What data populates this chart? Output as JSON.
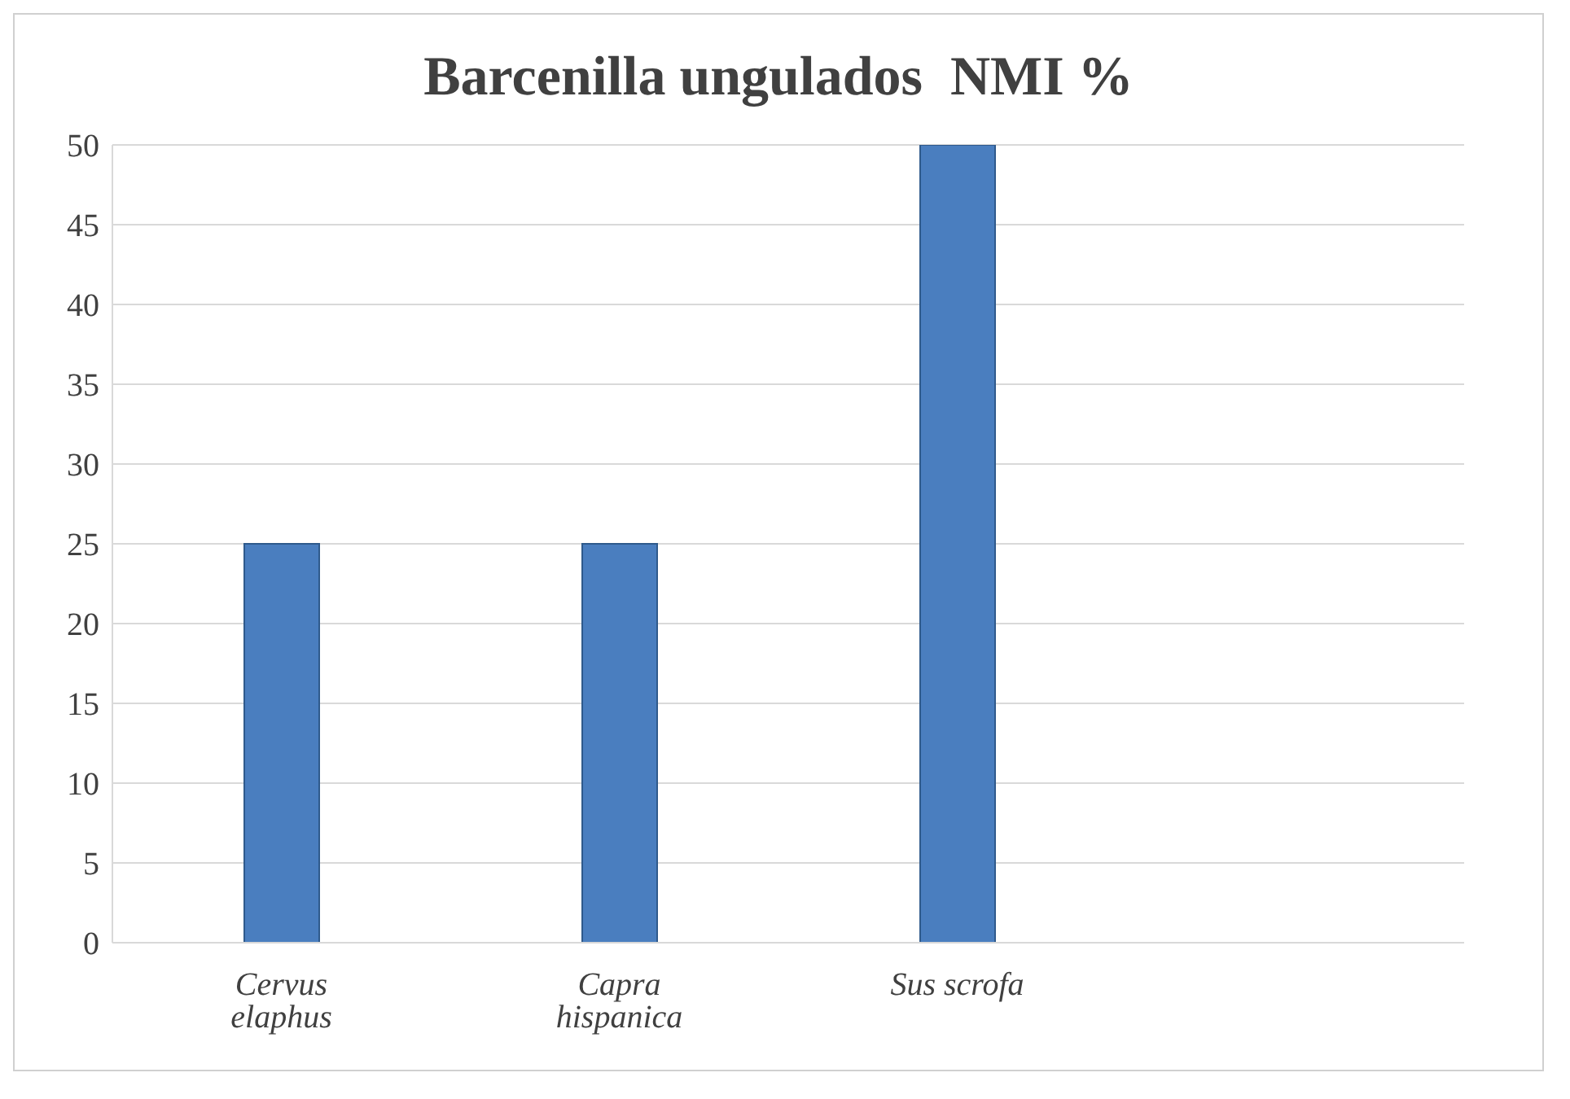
{
  "chart_data": {
    "type": "bar",
    "title": "Barcenilla ungulados  NMI %",
    "categories": [
      "Cervus elaphus",
      "Capra hispanica",
      "Sus scrofa",
      null
    ],
    "values": [
      25,
      25,
      50,
      null
    ],
    "color": "#4a7ebf",
    "ylim": [
      0,
      50
    ],
    "yticks": [
      0,
      5,
      10,
      15,
      20,
      25,
      30,
      35,
      40,
      45,
      50
    ],
    "grid": "y"
  }
}
